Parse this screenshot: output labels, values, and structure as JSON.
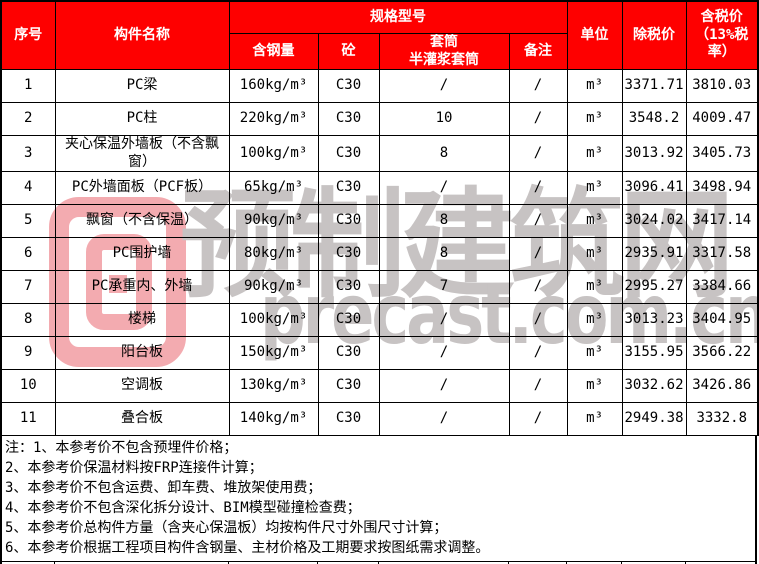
{
  "colors": {
    "header_bg": "#fe0000",
    "header_text": "#ffffff",
    "border": "#000000",
    "watermark_pink": "#f3abb0",
    "watermark_gray": "#c7c3c3"
  },
  "watermark": {
    "logo": "precast-square-spiral-logo",
    "text_cn": "预制建筑网",
    "text_en": "precast.com.cn"
  },
  "table": {
    "headers": {
      "index": "序号",
      "name": "构件名称",
      "spec_group": "规格型号",
      "steel": "含钢量",
      "concrete": "砼",
      "sleeve": "套筒\n半灌浆套筒",
      "remark": "备注",
      "unit": "单位",
      "price_ex_tax": "除税价",
      "price_inc_tax": "含税价（13%税率）"
    },
    "rows": [
      {
        "no": "1",
        "name": "PC梁",
        "steel": "160kg/m³",
        "concrete": "C30",
        "sleeve": "/",
        "remark": "/",
        "unit": "m³",
        "price_ex_tax": "3371.71",
        "price_inc_tax": "3810.03"
      },
      {
        "no": "2",
        "name": "PC柱",
        "steel": "220kg/m³",
        "concrete": "C30",
        "sleeve": "10",
        "remark": "/",
        "unit": "m³",
        "price_ex_tax": "3548.2",
        "price_inc_tax": "4009.47"
      },
      {
        "no": "3",
        "name": "夹心保温外墙板（不含飘窗）",
        "steel": "100kg/m³",
        "concrete": "C30",
        "sleeve": "8",
        "remark": "/",
        "unit": "m³",
        "price_ex_tax": "3013.92",
        "price_inc_tax": "3405.73"
      },
      {
        "no": "4",
        "name": "PC外墙面板（PCF板）",
        "steel": "65kg/m³",
        "concrete": "C30",
        "sleeve": "/",
        "remark": "/",
        "unit": "m³",
        "price_ex_tax": "3096.41",
        "price_inc_tax": "3498.94"
      },
      {
        "no": "5",
        "name": "飘窗（不含保温）",
        "steel": "90kg/m³",
        "concrete": "C30",
        "sleeve": "8",
        "remark": "/",
        "unit": "m³",
        "price_ex_tax": "3024.02",
        "price_inc_tax": "3417.14"
      },
      {
        "no": "6",
        "name": "PC围护墙",
        "steel": "80kg/m³",
        "concrete": "C30",
        "sleeve": "8",
        "remark": "/",
        "unit": "m³",
        "price_ex_tax": "2935.91",
        "price_inc_tax": "3317.58"
      },
      {
        "no": "7",
        "name": "PC承重内、外墙",
        "steel": "90kg/m³",
        "concrete": "C30",
        "sleeve": "7",
        "remark": "/",
        "unit": "m³",
        "price_ex_tax": "2995.27",
        "price_inc_tax": "3384.66"
      },
      {
        "no": "8",
        "name": "楼梯",
        "steel": "100kg/m³",
        "concrete": "C30",
        "sleeve": "/",
        "remark": "/",
        "unit": "m³",
        "price_ex_tax": "3013.23",
        "price_inc_tax": "3404.95"
      },
      {
        "no": "9",
        "name": "阳台板",
        "steel": "150kg/m³",
        "concrete": "C30",
        "sleeve": "/",
        "remark": "/",
        "unit": "m³",
        "price_ex_tax": "3155.95",
        "price_inc_tax": "3566.22"
      },
      {
        "no": "10",
        "name": "空调板",
        "steel": "130kg/m³",
        "concrete": "C30",
        "sleeve": "/",
        "remark": "/",
        "unit": "m³",
        "price_ex_tax": "3032.62",
        "price_inc_tax": "3426.86"
      },
      {
        "no": "11",
        "name": "叠合板",
        "steel": "140kg/m³",
        "concrete": "C30",
        "sleeve": "/",
        "remark": "/",
        "unit": "m³",
        "price_ex_tax": "2949.38",
        "price_inc_tax": "3332.8"
      }
    ]
  },
  "notes": {
    "lines": [
      "注：1、本参考价不包含预埋件价格；",
      "2、本参考价保温材料按FRP连接件计算；",
      "3、本参考价不包含运费、卸车费、堆放架使用费；",
      "4、本参考价不包含深化拆分设计、BIM模型碰撞检查费；",
      "5、本参考价总构件方量（含夹心保温板）均按构件尺寸外围尺寸计算；",
      "6、本参考价根据工程项目构件含钢量、主材价格及工期要求按图纸需求调整。"
    ]
  }
}
